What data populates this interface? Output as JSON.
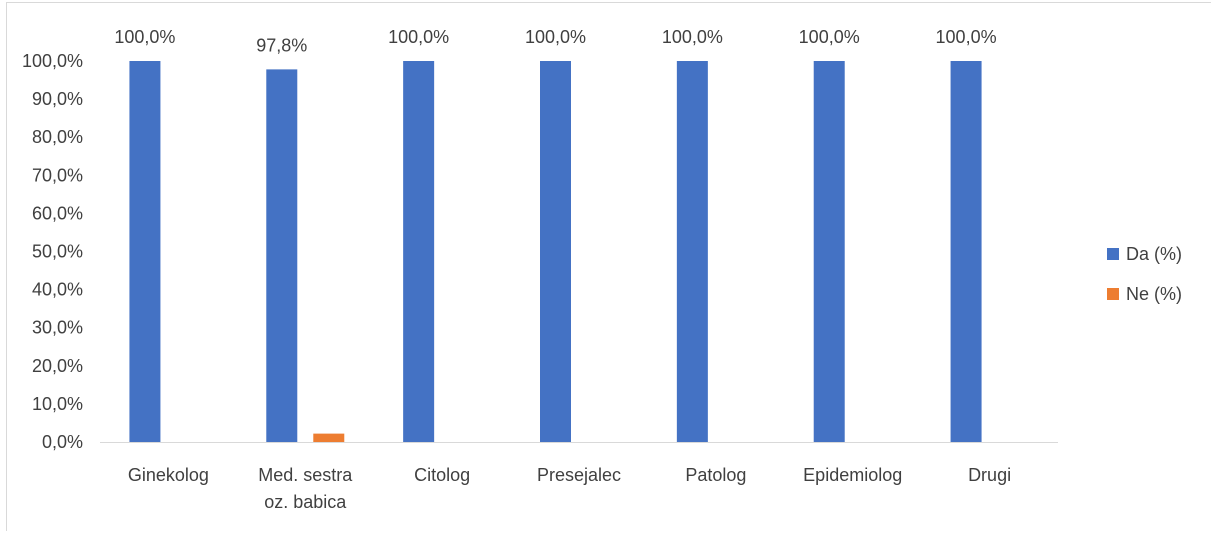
{
  "chart_data": {
    "type": "bar",
    "categories": [
      [
        "Ginekolog"
      ],
      [
        "Med. sestra",
        "oz. babica"
      ],
      [
        "Citolog"
      ],
      [
        "Presejalec"
      ],
      [
        "Patolog"
      ],
      [
        "Epidemiolog"
      ],
      [
        "Drugi"
      ]
    ],
    "series": [
      {
        "name": "Da (%)",
        "color": "#4472c4",
        "values": [
          100.0,
          97.8,
          100.0,
          100.0,
          100.0,
          100.0,
          100.0
        ],
        "labels": [
          "100,0%",
          "97,8%",
          "100,0%",
          "100,0%",
          "100,0%",
          "100,0%",
          "100,0%"
        ]
      },
      {
        "name": "Ne (%)",
        "color": "#ed7d31",
        "values": [
          0.0,
          2.2,
          0.0,
          0.0,
          0.0,
          0.0,
          0.0
        ]
      }
    ],
    "yticks": [
      "0,0%",
      "10,0%",
      "20,0%",
      "30,0%",
      "40,0%",
      "50,0%",
      "60,0%",
      "70,0%",
      "80,0%",
      "90,0%",
      "100,0%"
    ],
    "ylim": [
      0,
      100
    ],
    "legend_position": "right",
    "grid": false
  }
}
